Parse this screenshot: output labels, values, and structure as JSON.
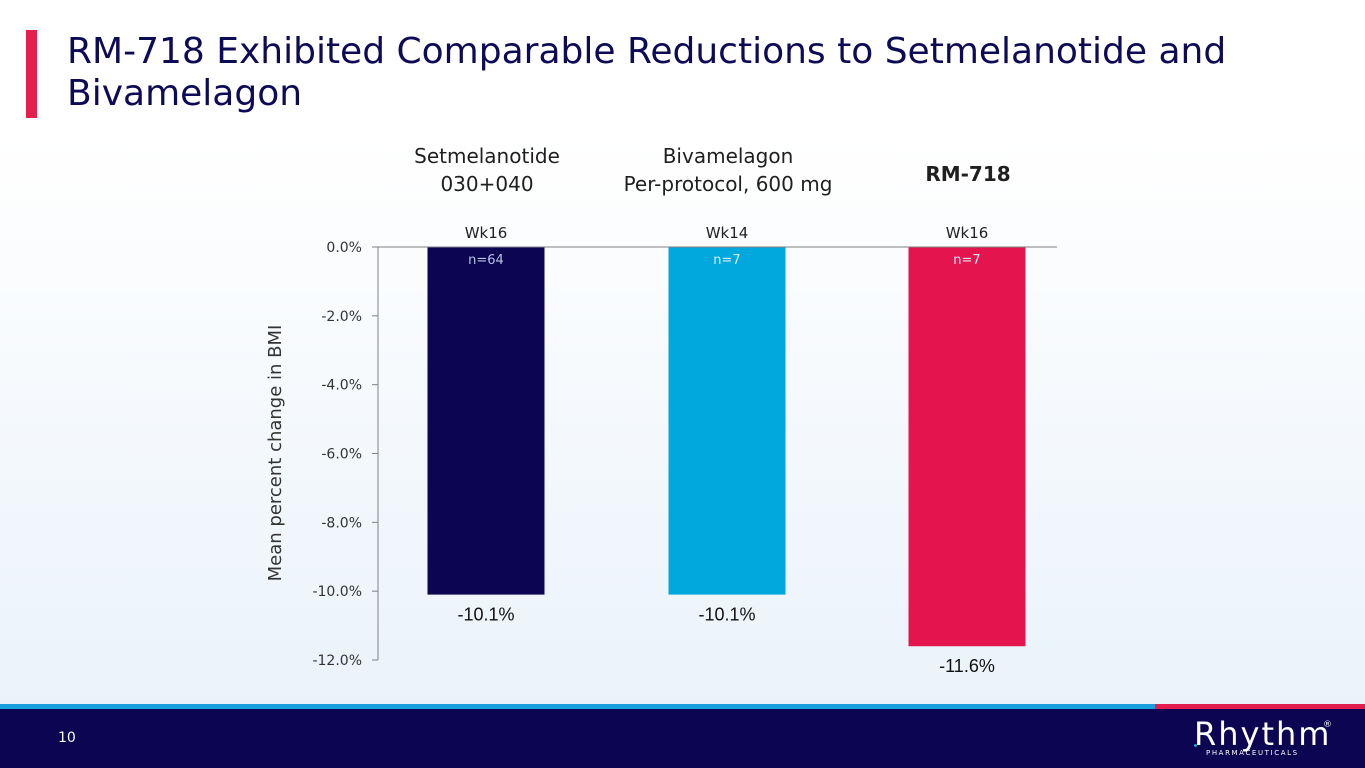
{
  "title": "RM-718 Exhibited Comparable Reductions to Setmelanotide and Bivamelagon",
  "accent_color": "#e41e4e",
  "group_headers": [
    {
      "line1": "Setmelanotide",
      "line2": "030+040"
    },
    {
      "line1": "Bivamelagon",
      "line2": "Per-protocol, 600 mg"
    },
    {
      "line1": "RM-718",
      "line2": ""
    }
  ],
  "chart_data": {
    "type": "bar",
    "categories": [
      "Setmelanotide 030+040",
      "Bivamelagon Per-protocol, 600 mg",
      "RM-718"
    ],
    "values": [
      -10.1,
      -10.1,
      -11.6
    ],
    "value_labels": [
      "-10.1%",
      "-10.1%",
      "-11.6%"
    ],
    "week_labels": [
      "Wk16",
      "Wk14",
      "Wk16"
    ],
    "n_labels": [
      "n=64",
      "n=7",
      "n=7"
    ],
    "colors": [
      "#0b0552",
      "#00a8de",
      "#e4144e"
    ],
    "ylabel": "Mean percent change in BMI",
    "ylim": [
      -12,
      0
    ],
    "yticks": [
      0,
      -2,
      -4,
      -6,
      -8,
      -10,
      -12
    ],
    "ytick_labels": [
      "0.0%",
      "-2.0%",
      "-4.0%",
      "-6.0%",
      "-8.0%",
      "-10.0%",
      "-12.0%"
    ],
    "grid": false,
    "legend": "none"
  },
  "footer": {
    "page_number": "10",
    "logo_text": "Rhythm",
    "logo_registered": "®",
    "logo_subtext": "PHARMACEUTICALS"
  }
}
